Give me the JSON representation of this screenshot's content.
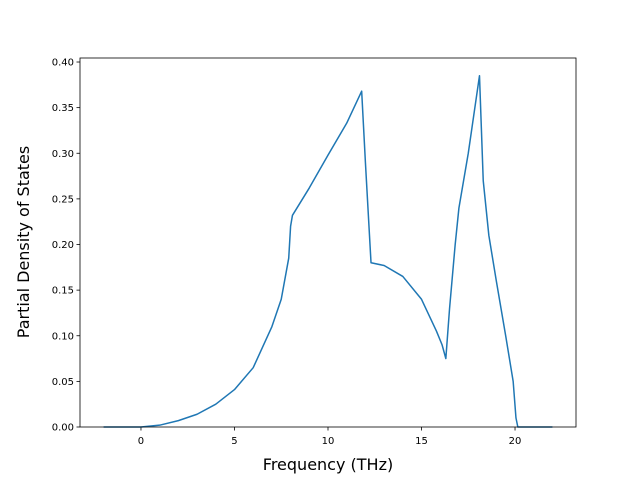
{
  "chart_data": {
    "type": "line",
    "xlabel": "Frequency (THz)",
    "ylabel": "Partial Density of States",
    "x": [
      -2,
      -1,
      0,
      1,
      2,
      3,
      4,
      5,
      6,
      7,
      7.5,
      7.9,
      8.0,
      8.1,
      9,
      10,
      11,
      11.8,
      12.0,
      12.3,
      13,
      14,
      15,
      15.8,
      16.1,
      16.3,
      16.5,
      16.8,
      17.0,
      17.5,
      18.1,
      18.3,
      18.6,
      19.0,
      19.5,
      19.9,
      20.05,
      20.15,
      21,
      22
    ],
    "series": [
      {
        "name": "pdos",
        "color": "#1f77b4",
        "values": [
          0,
          0,
          0,
          0.002,
          0.007,
          0.014,
          0.025,
          0.041,
          0.065,
          0.11,
          0.14,
          0.185,
          0.22,
          0.232,
          0.262,
          0.298,
          0.333,
          0.368,
          0.29,
          0.18,
          0.177,
          0.165,
          0.14,
          0.105,
          0.09,
          0.075,
          0.13,
          0.2,
          0.24,
          0.3,
          0.385,
          0.27,
          0.21,
          0.16,
          0.1,
          0.05,
          0.01,
          0,
          0,
          0
        ]
      }
    ],
    "xlim": [
      -3.26,
      23.26
    ],
    "ylim": [
      0,
      0.4044
    ],
    "xticks": [
      0,
      5,
      10,
      15,
      20
    ],
    "yticks": [
      {
        "value": 0,
        "label": "0.00"
      },
      {
        "value": 0.05,
        "label": "0.05"
      },
      {
        "value": 0.1,
        "label": "0.10"
      },
      {
        "value": 0.15,
        "label": "0.15"
      },
      {
        "value": 0.2,
        "label": "0.20"
      },
      {
        "value": 0.25,
        "label": "0.25"
      },
      {
        "value": 0.3,
        "label": "0.30"
      },
      {
        "value": 0.35,
        "label": "0.35"
      },
      {
        "value": 0.4,
        "label": "0.40"
      }
    ],
    "grid": false
  }
}
